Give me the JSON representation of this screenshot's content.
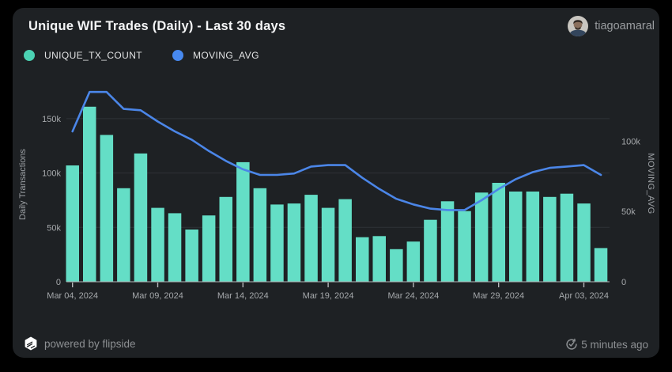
{
  "header": {
    "title": "Unique WIF Trades (Daily) - Last 30 days",
    "username": "tiagoamaral"
  },
  "legend": [
    {
      "label": "UNIQUE_TX_COUNT",
      "color": "#4bd2b3"
    },
    {
      "label": "MOVING_AVG",
      "color": "#4789f0"
    }
  ],
  "footer": {
    "powered_by": "powered by flipside",
    "updated": "5 minutes ago"
  },
  "colors": {
    "card_bg": "#1e2124",
    "bar": "#64dec6",
    "line": "#4b86e8",
    "grid": "#2f3337",
    "axis": "#b3b6b8",
    "tick_text": "#a6a9ac"
  },
  "chart_data": {
    "type": "bar",
    "title": "Unique WIF Trades (Daily) - Last 30 days",
    "x": [
      "Mar 04, 2024",
      "Mar 05, 2024",
      "Mar 06, 2024",
      "Mar 07, 2024",
      "Mar 08, 2024",
      "Mar 09, 2024",
      "Mar 10, 2024",
      "Mar 11, 2024",
      "Mar 12, 2024",
      "Mar 13, 2024",
      "Mar 14, 2024",
      "Mar 15, 2024",
      "Mar 16, 2024",
      "Mar 17, 2024",
      "Mar 18, 2024",
      "Mar 19, 2024",
      "Mar 20, 2024",
      "Mar 21, 2024",
      "Mar 22, 2024",
      "Mar 23, 2024",
      "Mar 24, 2024",
      "Mar 25, 2024",
      "Mar 26, 2024",
      "Mar 27, 2024",
      "Mar 28, 2024",
      "Mar 29, 2024",
      "Mar 30, 2024",
      "Mar 31, 2024",
      "Apr 01, 2024",
      "Apr 02, 2024",
      "Apr 03, 2024",
      "Apr 04, 2024"
    ],
    "series": [
      {
        "name": "UNIQUE_TX_COUNT",
        "type": "bar",
        "axis": "left",
        "color": "#64dec6",
        "values": [
          107000,
          161000,
          135000,
          86000,
          118000,
          68000,
          63000,
          48000,
          61000,
          78000,
          110000,
          86000,
          71000,
          72000,
          80000,
          68000,
          76000,
          41000,
          42000,
          30000,
          37000,
          57000,
          74000,
          65000,
          82000,
          91000,
          83000,
          83000,
          78000,
          81000,
          72000,
          31000
        ]
      },
      {
        "name": "MOVING_AVG",
        "type": "line",
        "axis": "right",
        "color": "#4b86e8",
        "values": [
          107000,
          135000,
          135000,
          123000,
          122000,
          114000,
          107000,
          101000,
          93000,
          86000,
          80000,
          76000,
          76000,
          77000,
          82000,
          83000,
          83000,
          74000,
          66000,
          59000,
          55000,
          52000,
          51000,
          51000,
          58000,
          66000,
          73000,
          78000,
          81000,
          82000,
          83000,
          76000
        ]
      }
    ],
    "xlabel": "",
    "ylabel_left": "Daily Transactions",
    "ylabel_right": "MOVING_AVG",
    "y_left_ticks": [
      {
        "label": "0",
        "value": 0
      },
      {
        "label": "50k",
        "value": 50000
      },
      {
        "label": "100k",
        "value": 100000
      },
      {
        "label": "150k",
        "value": 150000
      }
    ],
    "y_right_ticks": [
      {
        "label": "0",
        "value": 0
      },
      {
        "label": "50k",
        "value": 50000
      },
      {
        "label": "100k",
        "value": 100000
      }
    ],
    "ylim_left": [
      0,
      179000
    ],
    "ylim_right": [
      0,
      138500
    ],
    "x_tick_indices": [
      0,
      5,
      10,
      15,
      20,
      25,
      30
    ],
    "grid": true,
    "legend_position": "top-left"
  }
}
